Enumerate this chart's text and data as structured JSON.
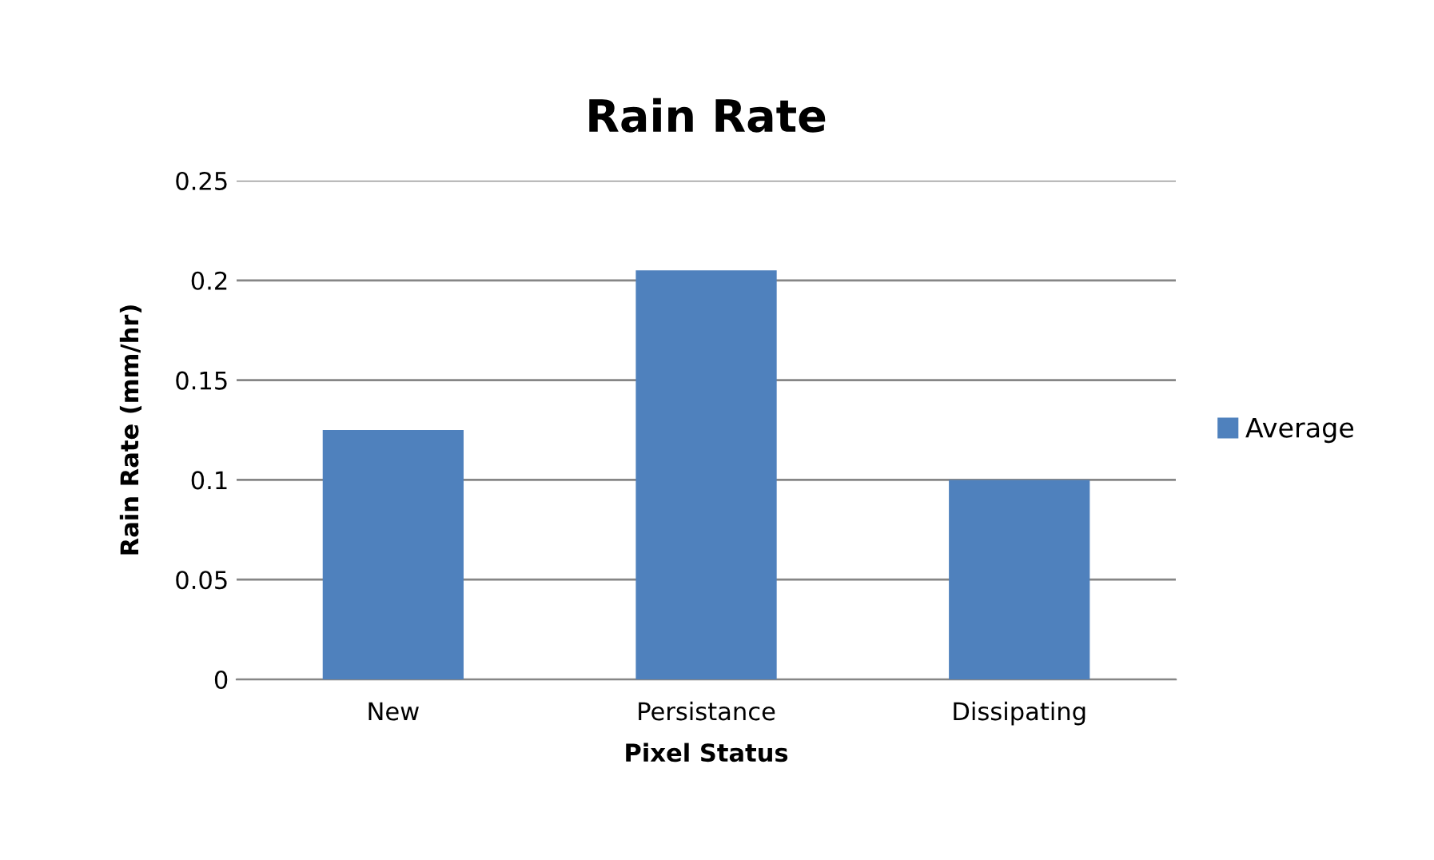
{
  "chart_data": {
    "type": "bar",
    "title": "Rain Rate",
    "xlabel": "Pixel Status",
    "ylabel": "Rain Rate (mm/hr)",
    "categories": [
      "New",
      "Persistance",
      "Dissipating"
    ],
    "series": [
      {
        "name": "Average",
        "color": "#4f81bd",
        "values": [
          0.125,
          0.205,
          0.1
        ]
      }
    ],
    "ylim": [
      0,
      0.25
    ],
    "yticks": [
      {
        "value": 0,
        "label": "0"
      },
      0.05,
      {
        "value": 0.1,
        "label": "0.1"
      },
      0.15,
      {
        "value": 0.2,
        "label": "0.2"
      },
      0.25
    ],
    "grid": "y",
    "legend": "right"
  }
}
